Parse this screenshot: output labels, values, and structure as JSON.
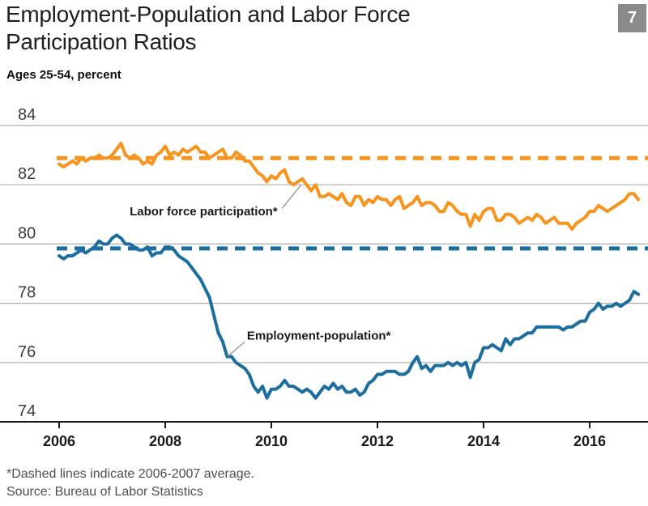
{
  "page": {
    "number_badge": "7"
  },
  "header": {
    "title_line1": "Employment-Population and Labor Force",
    "title_line2": "Participation Ratios",
    "subtitle": "Ages 25-54, percent"
  },
  "footnotes": {
    "dashed_note": "*Dashed lines indicate 2006-2007 average.",
    "source": "Source: Bureau of Labor Statistics"
  },
  "colors": {
    "orange": "#F7941E",
    "blue": "#1B6E9E",
    "gridline": "#ADADAD",
    "axis": "#1A1A1A",
    "badge_bg": "#8B8B8B",
    "annotation_text": "#1A1A1A",
    "callout_line": "#8A8A8A",
    "y_label": "#3D3D3D",
    "footnote_text": "#4E4E4E"
  },
  "chart_data": {
    "type": "line",
    "title": "Employment-Population and Labor Force Participation Ratios",
    "subtitle": "Ages 25-54, percent",
    "x_frequency": "monthly",
    "x_start": 2006.0,
    "x_end": 2016.9167,
    "x_ticks": [
      2006,
      2008,
      2010,
      2012,
      2014,
      2016
    ],
    "y_ticks": [
      74,
      76,
      78,
      80,
      82,
      84
    ],
    "ylim": [
      74,
      84
    ],
    "grid": "horizontal",
    "legend": "inline-annotations",
    "series": [
      {
        "name": "Labor force participation*",
        "data_name": "labor-force-participation-line",
        "color": "#F7941E",
        "values": [
          82.7,
          82.6,
          82.7,
          82.8,
          82.7,
          82.9,
          82.8,
          82.9,
          82.9,
          83.0,
          82.9,
          82.9,
          83.0,
          83.2,
          83.4,
          83.0,
          82.9,
          83.0,
          82.9,
          82.7,
          82.8,
          82.7,
          83.0,
          83.1,
          83.3,
          83.0,
          83.1,
          83.0,
          83.2,
          83.1,
          83.2,
          83.3,
          83.1,
          83.1,
          82.9,
          83.0,
          83.1,
          83.2,
          82.9,
          82.9,
          83.1,
          83.0,
          82.8,
          82.8,
          82.6,
          82.4,
          82.3,
          82.1,
          82.3,
          82.2,
          82.4,
          82.5,
          82.1,
          82.0,
          82.1,
          82.2,
          82.0,
          81.8,
          82.0,
          81.6,
          81.6,
          81.7,
          81.6,
          81.5,
          81.7,
          81.4,
          81.3,
          81.6,
          81.6,
          81.3,
          81.5,
          81.4,
          81.6,
          81.5,
          81.5,
          81.3,
          81.5,
          81.6,
          81.2,
          81.3,
          81.4,
          81.6,
          81.3,
          81.4,
          81.4,
          81.3,
          81.1,
          81.1,
          81.4,
          81.3,
          81.1,
          81.0,
          81.0,
          80.6,
          81.0,
          80.8,
          81.1,
          81.2,
          81.2,
          80.8,
          80.8,
          81.0,
          81.0,
          80.9,
          80.7,
          80.8,
          80.9,
          80.8,
          81.0,
          80.9,
          80.7,
          80.8,
          80.9,
          80.7,
          80.7,
          80.7,
          80.5,
          80.7,
          80.8,
          80.9,
          81.1,
          81.1,
          81.3,
          81.2,
          81.1,
          81.2,
          81.3,
          81.4,
          81.5,
          81.7,
          81.7,
          81.5
        ]
      },
      {
        "name": "Employment-population*",
        "data_name": "employment-population-line",
        "color": "#1B6E9E",
        "values": [
          79.6,
          79.5,
          79.6,
          79.6,
          79.7,
          79.8,
          79.7,
          79.8,
          79.9,
          80.1,
          80.0,
          80.0,
          80.2,
          80.3,
          80.2,
          80.0,
          80.0,
          79.9,
          79.8,
          79.8,
          79.9,
          79.6,
          79.7,
          79.7,
          79.9,
          79.9,
          79.8,
          79.6,
          79.5,
          79.4,
          79.2,
          79.0,
          78.8,
          78.5,
          78.2,
          77.6,
          77.0,
          76.7,
          76.2,
          76.2,
          76.0,
          75.9,
          75.8,
          75.6,
          75.2,
          75.0,
          75.2,
          74.8,
          75.1,
          75.1,
          75.2,
          75.4,
          75.2,
          75.2,
          75.1,
          75.0,
          75.1,
          75.0,
          74.8,
          75.0,
          75.2,
          75.1,
          75.3,
          75.1,
          75.2,
          75.0,
          75.0,
          75.1,
          74.9,
          75.0,
          75.3,
          75.4,
          75.6,
          75.6,
          75.7,
          75.7,
          75.7,
          75.6,
          75.6,
          75.7,
          76.0,
          76.2,
          75.8,
          75.9,
          75.7,
          75.9,
          75.9,
          75.9,
          76.0,
          75.9,
          76.0,
          75.9,
          76.0,
          75.5,
          76.0,
          76.1,
          76.5,
          76.5,
          76.6,
          76.5,
          76.4,
          76.8,
          76.6,
          76.8,
          76.8,
          76.9,
          77.0,
          77.0,
          77.2,
          77.2,
          77.2,
          77.2,
          77.2,
          77.2,
          77.1,
          77.2,
          77.2,
          77.3,
          77.4,
          77.4,
          77.7,
          77.8,
          78.0,
          77.8,
          77.9,
          77.9,
          78.0,
          77.9,
          78.0,
          78.1,
          78.4,
          78.3
        ]
      }
    ],
    "reference_lines": [
      {
        "name": "Labor force participation 2006-2007 average",
        "data_name": "labor-force-participation-average-dashed-line",
        "value": 82.9,
        "style": "dashed",
        "color": "#F7941E"
      },
      {
        "name": "Employment-population 2006-2007 average",
        "data_name": "employment-population-average-dashed-line",
        "value": 79.85,
        "style": "dashed",
        "color": "#1B6E9E"
      }
    ],
    "annotations": [
      {
        "text": "Labor force participation*",
        "text_x": 2007.33,
        "text_y": 80.97,
        "line_from_x": 2010.2,
        "line_from_y": 81.2,
        "line_to_x": 2010.56,
        "line_to_y": 82.0
      },
      {
        "text": "Employment-population*",
        "text_x": 2009.54,
        "text_y": 76.78,
        "line_from_x": 2009.5,
        "line_from_y": 76.7,
        "line_to_x": 2009.17,
        "line_to_y": 76.2
      }
    ]
  }
}
